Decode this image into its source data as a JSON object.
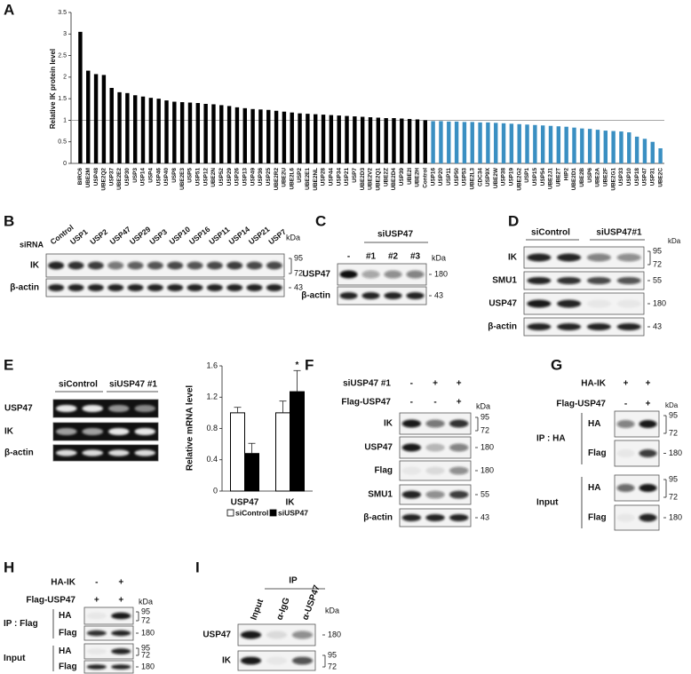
{
  "panels": {
    "a": {
      "label": "A",
      "chart": {
        "type": "bar",
        "ylabel": "Relative IK protein level",
        "ylim": [
          0,
          3.5
        ],
        "yticks": [
          0,
          0.5,
          1,
          1.5,
          2,
          2.5,
          3,
          3.5
        ],
        "reference_line": 1,
        "groups": [
          {
            "color": "#000000",
            "categories": [
              "BIRC6",
              "UBE2M",
              "USP48",
              "UBE2Q2",
              "USP37",
              "UBE2E2",
              "USP30",
              "USP3",
              "USP14",
              "USP4",
              "USP46",
              "USP40",
              "USP8",
              "UBE2E3",
              "USP5",
              "USP51",
              "USP12",
              "UBE2N",
              "USP52",
              "USP29",
              "USP26",
              "USP13",
              "USP49",
              "USP36",
              "USP25",
              "UBE2R2",
              "UBE2U",
              "UBE2L6",
              "USP2",
              "UBE2E1",
              "UBE2NL",
              "USP28",
              "USP44",
              "USP34",
              "USP21",
              "USP7",
              "UBE2D3",
              "UBE2V2",
              "UBE2Q1",
              "UBE2Z",
              "UBE2D4",
              "USP39",
              "UBE2I",
              "UBE2H",
              "Control"
            ],
            "values": [
              3.05,
              2.15,
              2.07,
              2.05,
              1.75,
              1.65,
              1.63,
              1.58,
              1.55,
              1.52,
              1.5,
              1.46,
              1.43,
              1.42,
              1.41,
              1.4,
              1.38,
              1.37,
              1.35,
              1.33,
              1.3,
              1.28,
              1.26,
              1.25,
              1.24,
              1.22,
              1.2,
              1.18,
              1.16,
              1.15,
              1.14,
              1.13,
              1.12,
              1.11,
              1.1,
              1.09,
              1.08,
              1.07,
              1.06,
              1.05,
              1.05,
              1.04,
              1.03,
              1.02,
              1.0
            ]
          },
          {
            "color": "#3a8fc2",
            "categories": [
              "USP16",
              "USP20",
              "USP11",
              "USP50",
              "USP53",
              "UBE2L3",
              "CDC34",
              "USP9X",
              "UBE2W",
              "USP38",
              "USP19",
              "UBE2G2",
              "USP1",
              "USP15",
              "USP54",
              "UBE2J1",
              "UBE2T",
              "HIP2",
              "UBE2D1",
              "UBE2B",
              "USP6",
              "UBE2A",
              "UBE2F",
              "UBE2G1",
              "USP33",
              "USP10",
              "USP18",
              "USP47",
              "USP31",
              "UBE2C"
            ],
            "values": [
              0.98,
              0.98,
              0.97,
              0.97,
              0.96,
              0.96,
              0.95,
              0.95,
              0.94,
              0.93,
              0.92,
              0.91,
              0.9,
              0.89,
              0.88,
              0.87,
              0.86,
              0.85,
              0.83,
              0.81,
              0.8,
              0.78,
              0.76,
              0.75,
              0.74,
              0.72,
              0.62,
              0.57,
              0.5,
              0.35
            ]
          }
        ]
      }
    },
    "b": {
      "label": "B",
      "row_label": "siRNA",
      "unit": "kDa",
      "lanes": [
        "Control",
        "USP1",
        "USP2",
        "USP47",
        "USP29",
        "USP3",
        "USP10",
        "USP16",
        "USP11",
        "USP14",
        "USP21",
        "USP7"
      ],
      "blots": [
        {
          "name": "IK",
          "markers": [
            "95",
            "72"
          ]
        },
        {
          "name": "β-actin",
          "markers": [
            "43"
          ]
        }
      ]
    },
    "c": {
      "label": "C",
      "header": "siUSP47",
      "unit": "kDa",
      "lanes": [
        "-",
        "#1",
        "#2",
        "#3"
      ],
      "blots": [
        {
          "name": "USP47",
          "markers": [
            "180"
          ]
        },
        {
          "name": "β-actin",
          "markers": [
            "43"
          ]
        }
      ]
    },
    "d": {
      "label": "D",
      "groups": [
        "siControl",
        "siUSP47#1"
      ],
      "unit": "kDa",
      "blots": [
        {
          "name": "IK",
          "markers": [
            "95",
            "72"
          ]
        },
        {
          "name": "SMU1",
          "markers": [
            "55"
          ]
        },
        {
          "name": "USP47",
          "markers": [
            "180"
          ]
        },
        {
          "name": "β-actin",
          "markers": [
            "43"
          ]
        }
      ]
    },
    "e": {
      "label": "E",
      "groups": [
        "siControl",
        "siUSP47 #1"
      ],
      "blots": [
        {
          "name": "USP47"
        },
        {
          "name": "IK"
        },
        {
          "name": "β-actin"
        }
      ],
      "chart": {
        "type": "bar",
        "ylabel": "Relative mRNA level",
        "categories": [
          "USP47",
          "IK"
        ],
        "ylim": [
          0,
          1.6
        ],
        "yticks": [
          0,
          0.4,
          0.8,
          1.2,
          1.6
        ],
        "series": [
          {
            "name": "siControl",
            "color": "#ffffff",
            "values": [
              1.0,
              1.0
            ],
            "errors": [
              0.07,
              0.15
            ]
          },
          {
            "name": "siUSP47",
            "color": "#000000",
            "values": [
              0.48,
              1.27
            ],
            "errors": [
              0.13,
              0.27
            ]
          }
        ],
        "annotation": {
          "text": "*",
          "category": "IK",
          "series": "siUSP47"
        }
      }
    },
    "f": {
      "label": "F",
      "unit": "kDa",
      "conditions": [
        {
          "name": "siUSP47 #1",
          "signs": [
            "-",
            "+",
            "+"
          ]
        },
        {
          "name": "Flag-USP47",
          "signs": [
            "-",
            "-",
            "+"
          ]
        }
      ],
      "blots": [
        {
          "name": "IK",
          "markers": [
            "95",
            "72"
          ]
        },
        {
          "name": "USP47",
          "markers": [
            "180"
          ]
        },
        {
          "name": "Flag",
          "markers": [
            "180"
          ]
        },
        {
          "name": "SMU1",
          "markers": [
            "55"
          ]
        },
        {
          "name": "β-actin",
          "markers": [
            "43"
          ]
        }
      ]
    },
    "g": {
      "label": "G",
      "unit": "kDa",
      "conditions": [
        {
          "name": "HA-IK",
          "signs": [
            "+",
            "+"
          ]
        },
        {
          "name": "Flag-USP47",
          "signs": [
            "-",
            "+"
          ]
        }
      ],
      "sections": [
        {
          "name": "IP : HA",
          "blots": [
            {
              "name": "HA",
              "markers": [
                "95",
                "72"
              ]
            },
            {
              "name": "Flag",
              "markers": [
                "180"
              ]
            }
          ]
        },
        {
          "name": "Input",
          "blots": [
            {
              "name": "HA",
              "markers": [
                "95",
                "72"
              ]
            },
            {
              "name": "Flag",
              "markers": [
                "180"
              ]
            }
          ]
        }
      ]
    },
    "h": {
      "label": "H",
      "unit": "kDa",
      "conditions": [
        {
          "name": "HA-IK",
          "signs": [
            "-",
            "+"
          ]
        },
        {
          "name": "Flag-USP47",
          "signs": [
            "+",
            "+"
          ]
        }
      ],
      "sections": [
        {
          "name": "IP : Flag",
          "blots": [
            {
              "name": "HA",
              "markers": [
                "95",
                "72"
              ]
            },
            {
              "name": "Flag",
              "markers": [
                "180"
              ]
            }
          ]
        },
        {
          "name": "Input",
          "blots": [
            {
              "name": "HA",
              "markers": [
                "95",
                "72"
              ]
            },
            {
              "name": "Flag",
              "markers": [
                "180"
              ]
            }
          ]
        }
      ]
    },
    "i": {
      "label": "I",
      "header": "IP",
      "unit": "kDa",
      "lanes": [
        "Input",
        "α-IgG",
        "α-USP47"
      ],
      "blots": [
        {
          "name": "USP47",
          "markers": [
            "180"
          ]
        },
        {
          "name": "IK",
          "markers": [
            "95",
            "72"
          ]
        }
      ]
    }
  }
}
